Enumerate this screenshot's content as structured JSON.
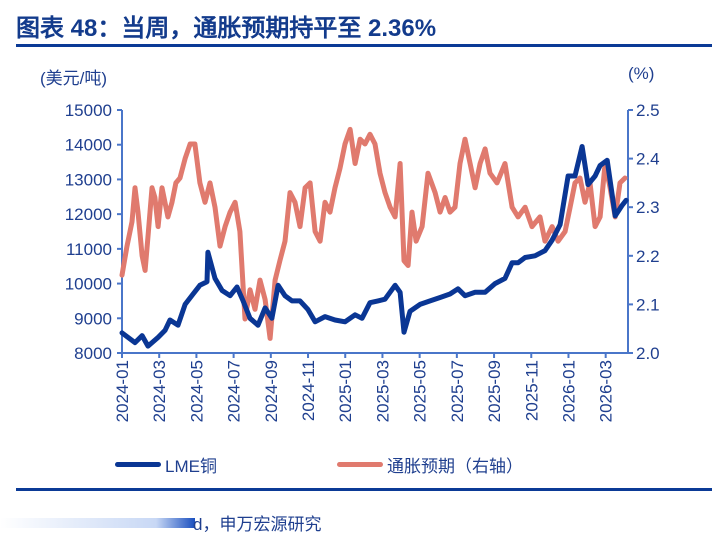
{
  "header": {
    "title": "图表 48：当周，通胀预期持平至 2.36%"
  },
  "footer": {
    "source": "d，申万宏源研究"
  },
  "colors": {
    "copper": "#0a3694",
    "inflation": "#e07a6e",
    "axis": "#4a76c9",
    "text": "#1f3f8f"
  },
  "chart_data": {
    "type": "line",
    "title": "图表 48：当周，通胀预期持平至 2.36%",
    "ylabel_left": "(美元/吨)",
    "ylabel_right": "(%)",
    "x_unit": "months since 2024-01",
    "xlim": [
      0,
      27.2
    ],
    "ylim_left": [
      8000,
      15000
    ],
    "ylim_right": [
      2.0,
      2.5
    ],
    "yticks_left": [
      "8000",
      "9000",
      "10000",
      "11000",
      "12000",
      "13000",
      "14000",
      "15000"
    ],
    "yticks_right": [
      "2.0",
      "2.1",
      "2.2",
      "2.3",
      "2.4",
      "2.5"
    ],
    "xticks": [
      "2024-01",
      "2024-03",
      "2024-05",
      "2024-07",
      "2024-09",
      "2024-11",
      "2025-01",
      "2025-03",
      "2025-05",
      "2025-07",
      "2025-09",
      "2025-11",
      "2026-01",
      "2026-03"
    ],
    "legend_position": "bottom",
    "series": [
      {
        "name": "LME铜",
        "axis": "left",
        "points": [
          [
            0,
            8580
          ],
          [
            0.7,
            8300
          ],
          [
            1.08,
            8500
          ],
          [
            1.4,
            8200
          ],
          [
            1.94,
            8450
          ],
          [
            2.31,
            8650
          ],
          [
            2.58,
            8950
          ],
          [
            3.01,
            8800
          ],
          [
            3.39,
            9400
          ],
          [
            3.82,
            9700
          ],
          [
            4.19,
            9950
          ],
          [
            4.57,
            10050
          ],
          [
            4.62,
            10900
          ],
          [
            5.0,
            10150
          ],
          [
            5.38,
            9800
          ],
          [
            5.81,
            9650
          ],
          [
            6.18,
            9900
          ],
          [
            6.51,
            9500
          ],
          [
            6.88,
            9000
          ],
          [
            7.31,
            8800
          ],
          [
            7.69,
            9300
          ],
          [
            8.06,
            9000
          ],
          [
            8.39,
            9950
          ],
          [
            8.76,
            9650
          ],
          [
            9.14,
            9500
          ],
          [
            9.57,
            9500
          ],
          [
            10.0,
            9250
          ],
          [
            10.38,
            8900
          ],
          [
            10.91,
            9050
          ],
          [
            11.45,
            8950
          ],
          [
            11.99,
            8900
          ],
          [
            12.53,
            9100
          ],
          [
            12.9,
            9000
          ],
          [
            13.33,
            9450
          ],
          [
            13.76,
            9500
          ],
          [
            14.14,
            9550
          ],
          [
            14.68,
            9950
          ],
          [
            14.95,
            9750
          ],
          [
            15.16,
            8600
          ],
          [
            15.48,
            9200
          ],
          [
            16.02,
            9400
          ],
          [
            16.56,
            9500
          ],
          [
            17.1,
            9600
          ],
          [
            17.63,
            9700
          ],
          [
            18.06,
            9850
          ],
          [
            18.44,
            9650
          ],
          [
            18.98,
            9750
          ],
          [
            19.52,
            9750
          ],
          [
            20.05,
            10000
          ],
          [
            20.59,
            10150
          ],
          [
            20.97,
            10600
          ],
          [
            21.29,
            10600
          ],
          [
            21.67,
            10750
          ],
          [
            22.2,
            10800
          ],
          [
            22.74,
            10950
          ],
          [
            23.12,
            11250
          ],
          [
            23.55,
            11700
          ],
          [
            23.98,
            13100
          ],
          [
            24.35,
            13100
          ],
          [
            24.73,
            13950
          ],
          [
            25.05,
            12850
          ],
          [
            25.43,
            13100
          ],
          [
            25.7,
            13400
          ],
          [
            26.08,
            13550
          ],
          [
            26.51,
            11950
          ],
          [
            26.88,
            12250
          ],
          [
            27.1,
            12400
          ]
        ]
      },
      {
        "name": "通胀预期（右轴）",
        "axis": "right",
        "points": [
          [
            0,
            2.16
          ],
          [
            0.27,
            2.22
          ],
          [
            0.54,
            2.27
          ],
          [
            0.7,
            2.34
          ],
          [
            0.86,
            2.29
          ],
          [
            1.08,
            2.2
          ],
          [
            1.24,
            2.17
          ],
          [
            1.4,
            2.24
          ],
          [
            1.61,
            2.34
          ],
          [
            1.77,
            2.32
          ],
          [
            1.94,
            2.26
          ],
          [
            2.15,
            2.34
          ],
          [
            2.47,
            2.28
          ],
          [
            2.69,
            2.31
          ],
          [
            2.9,
            2.35
          ],
          [
            3.12,
            2.36
          ],
          [
            3.39,
            2.4
          ],
          [
            3.66,
            2.43
          ],
          [
            3.92,
            2.43
          ],
          [
            4.19,
            2.35
          ],
          [
            4.46,
            2.31
          ],
          [
            4.73,
            2.35
          ],
          [
            5.0,
            2.3
          ],
          [
            5.27,
            2.22
          ],
          [
            5.54,
            2.26
          ],
          [
            5.81,
            2.29
          ],
          [
            6.08,
            2.31
          ],
          [
            6.34,
            2.25
          ],
          [
            6.61,
            2.07
          ],
          [
            6.88,
            2.13
          ],
          [
            7.15,
            2.09
          ],
          [
            7.42,
            2.15
          ],
          [
            7.69,
            2.11
          ],
          [
            7.96,
            2.03
          ],
          [
            8.23,
            2.15
          ],
          [
            8.49,
            2.19
          ],
          [
            8.76,
            2.23
          ],
          [
            9.03,
            2.33
          ],
          [
            9.3,
            2.31
          ],
          [
            9.57,
            2.26
          ],
          [
            9.84,
            2.34
          ],
          [
            10.11,
            2.35
          ],
          [
            10.38,
            2.25
          ],
          [
            10.65,
            2.23
          ],
          [
            10.91,
            2.31
          ],
          [
            11.18,
            2.29
          ],
          [
            11.45,
            2.34
          ],
          [
            11.72,
            2.38
          ],
          [
            11.99,
            2.43
          ],
          [
            12.26,
            2.46
          ],
          [
            12.53,
            2.39
          ],
          [
            12.8,
            2.44
          ],
          [
            13.06,
            2.43
          ],
          [
            13.33,
            2.45
          ],
          [
            13.6,
            2.43
          ],
          [
            13.87,
            2.37
          ],
          [
            14.14,
            2.33
          ],
          [
            14.41,
            2.3
          ],
          [
            14.68,
            2.28
          ],
          [
            14.95,
            2.39
          ],
          [
            15.16,
            2.19
          ],
          [
            15.38,
            2.18
          ],
          [
            15.59,
            2.29
          ],
          [
            15.81,
            2.23
          ],
          [
            16.13,
            2.26
          ],
          [
            16.45,
            2.37
          ],
          [
            16.83,
            2.33
          ],
          [
            17.1,
            2.29
          ],
          [
            17.37,
            2.32
          ],
          [
            17.63,
            2.29
          ],
          [
            17.9,
            2.3
          ],
          [
            18.17,
            2.39
          ],
          [
            18.44,
            2.44
          ],
          [
            18.71,
            2.39
          ],
          [
            18.98,
            2.34
          ],
          [
            19.25,
            2.39
          ],
          [
            19.52,
            2.42
          ],
          [
            19.78,
            2.37
          ],
          [
            20.16,
            2.35
          ],
          [
            20.59,
            2.39
          ],
          [
            20.97,
            2.3
          ],
          [
            21.29,
            2.28
          ],
          [
            21.67,
            2.3
          ],
          [
            22.04,
            2.26
          ],
          [
            22.47,
            2.28
          ],
          [
            22.74,
            2.23
          ],
          [
            23.12,
            2.26
          ],
          [
            23.44,
            2.23
          ],
          [
            23.82,
            2.25
          ],
          [
            24.09,
            2.3
          ],
          [
            24.35,
            2.35
          ],
          [
            24.62,
            2.36
          ],
          [
            24.89,
            2.31
          ],
          [
            25.16,
            2.35
          ],
          [
            25.43,
            2.26
          ],
          [
            25.7,
            2.28
          ],
          [
            25.97,
            2.39
          ],
          [
            26.24,
            2.34
          ],
          [
            26.51,
            2.28
          ],
          [
            26.77,
            2.35
          ],
          [
            27.04,
            2.36
          ]
        ]
      }
    ]
  }
}
